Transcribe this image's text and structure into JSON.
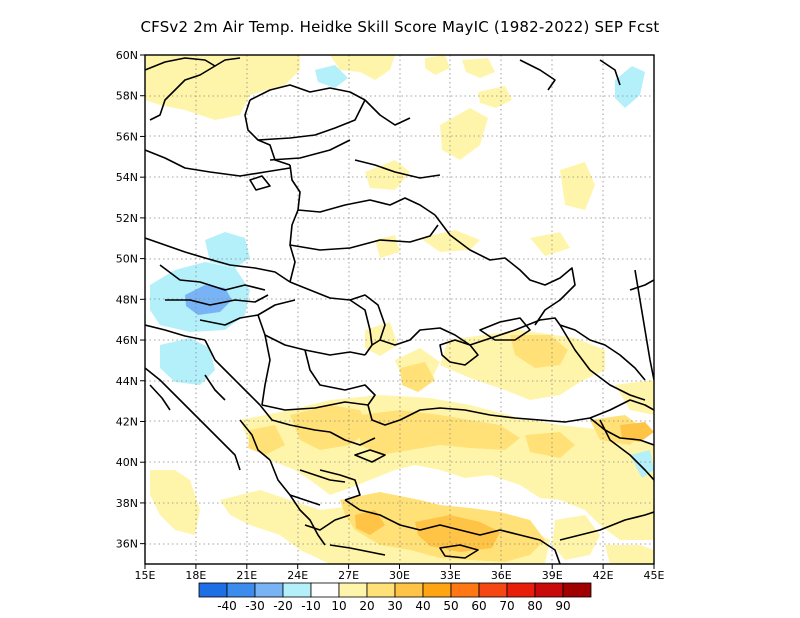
{
  "title": "CFSv2  2m Air Temp. Heidke Skill Score MayIC (1982-2022) SEP Fcst",
  "map": {
    "lon_range": [
      15,
      45
    ],
    "lat_range": [
      35,
      60
    ],
    "lon_ticks": [
      {
        "value": 15,
        "label": "15E"
      },
      {
        "value": 18,
        "label": "18E"
      },
      {
        "value": 21,
        "label": "21E"
      },
      {
        "value": 24,
        "label": "24E"
      },
      {
        "value": 27,
        "label": "27E"
      },
      {
        "value": 30,
        "label": "30E"
      },
      {
        "value": 33,
        "label": "33E"
      },
      {
        "value": 36,
        "label": "36E"
      },
      {
        "value": 39,
        "label": "39E"
      },
      {
        "value": 42,
        "label": "42E"
      },
      {
        "value": 45,
        "label": "45E"
      }
    ],
    "lat_ticks": [
      {
        "value": 36,
        "label": "36N"
      },
      {
        "value": 38,
        "label": "38N"
      },
      {
        "value": 40,
        "label": "40N"
      },
      {
        "value": 42,
        "label": "42N"
      },
      {
        "value": 44,
        "label": "44N"
      },
      {
        "value": 46,
        "label": "46N"
      },
      {
        "value": 48,
        "label": "48N"
      },
      {
        "value": 50,
        "label": "50N"
      },
      {
        "value": 52,
        "label": "52N"
      },
      {
        "value": 54,
        "label": "54N"
      },
      {
        "value": 56,
        "label": "56N"
      },
      {
        "value": 58,
        "label": "58N"
      },
      {
        "value": 60,
        "label": "60N"
      }
    ],
    "grid": "dotted"
  },
  "colorbar": {
    "colors": [
      "#1e6fe6",
      "#3c8ced",
      "#78b4f5",
      "#b4f0fa",
      "#ffffff",
      "#fff5aa",
      "#ffe178",
      "#ffc346",
      "#ffa514",
      "#ff7814",
      "#f54614",
      "#e61e0a",
      "#c80a0a",
      "#a00000"
    ],
    "labels": [
      "-40",
      "-30",
      "-20",
      "-10",
      "10",
      "20",
      "30",
      "40",
      "50",
      "60",
      "70",
      "80",
      "90"
    ]
  },
  "colors": {
    "positive_10_20": "#fff5aa",
    "positive_20_30": "#ffe178",
    "positive_30_40": "#ffc346",
    "negative_10_20": "#b4f0fa",
    "negative_20_30": "#78b4f5",
    "borders": "#000000"
  }
}
